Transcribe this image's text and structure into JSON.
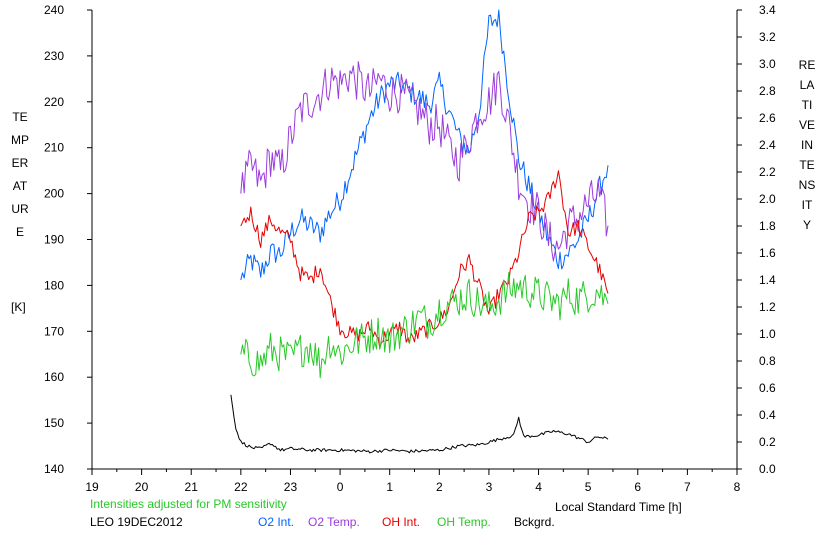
{
  "chart_data": {
    "type": "line",
    "title": "",
    "xlabel": "Local Standard Time [h]",
    "ylabel_left": "TEMPERATURE",
    "ylabel_left_unit": "[K]",
    "ylabel_right": "RELATIVE INTENSITY",
    "x_tick_labels": [
      "19",
      "20",
      "21",
      "22",
      "23",
      "0",
      "1",
      "2",
      "3",
      "4",
      "5",
      "6",
      "7",
      "8"
    ],
    "x_range_hours": [
      19,
      32
    ],
    "y_left_ticks": [
      140,
      150,
      160,
      170,
      180,
      190,
      200,
      210,
      220,
      230,
      240
    ],
    "y_left_range": [
      140,
      240
    ],
    "y_right_ticks": [
      "0.0",
      "0.2",
      "0.4",
      "0.6",
      "0.8",
      "1.0",
      "1.2",
      "1.4",
      "1.6",
      "1.8",
      "2.0",
      "2.2",
      "2.4",
      "2.6",
      "2.8",
      "3.0",
      "3.2",
      "3.4"
    ],
    "y_right_range": [
      0.0,
      3.4
    ],
    "grid": false,
    "note": "Intensities adjusted for PM sensitivity",
    "station": "LEO 19DEC2012",
    "series": [
      {
        "name": "O2 Int.",
        "color": "#0064ff",
        "axis": "right",
        "x": [
          22.0,
          22.2,
          22.4,
          22.6,
          22.8,
          23.0,
          23.2,
          23.4,
          23.6,
          23.8,
          24.0,
          24.2,
          24.4,
          24.6,
          24.8,
          25.0,
          25.2,
          25.4,
          25.6,
          25.8,
          26.0,
          26.2,
          26.4,
          26.6,
          26.8,
          27.0,
          27.2,
          27.4,
          27.6,
          27.8,
          28.0,
          28.2,
          28.4,
          28.6,
          28.8,
          29.0,
          29.2,
          29.4
        ],
        "values": [
          1.4,
          1.55,
          1.45,
          1.6,
          1.6,
          1.75,
          1.85,
          1.8,
          1.75,
          1.9,
          2.0,
          2.2,
          2.4,
          2.6,
          2.75,
          2.85,
          2.85,
          2.8,
          2.75,
          2.7,
          2.85,
          2.65,
          2.45,
          2.35,
          2.65,
          3.3,
          3.35,
          2.8,
          2.3,
          2.1,
          1.9,
          1.7,
          1.55,
          1.6,
          1.7,
          1.85,
          2.05,
          2.25
        ]
      },
      {
        "name": "O2 Temp.",
        "color": "#9b3cdc",
        "axis": "left",
        "x": [
          22.0,
          22.2,
          22.4,
          22.6,
          22.8,
          23.0,
          23.2,
          23.4,
          23.6,
          23.8,
          24.0,
          24.2,
          24.4,
          24.6,
          24.8,
          25.0,
          25.2,
          25.4,
          25.6,
          25.8,
          26.0,
          26.2,
          26.4,
          26.6,
          26.8,
          27.0,
          27.2,
          27.4,
          27.6,
          27.8,
          28.0,
          28.2,
          28.4,
          28.6,
          28.8,
          29.0,
          29.2,
          29.4
        ],
        "values": [
          200,
          206,
          202,
          208,
          205,
          212,
          218,
          220,
          222,
          225,
          224,
          226,
          224,
          222,
          225,
          222,
          222,
          220,
          218,
          215,
          215,
          210,
          207,
          212,
          218,
          220,
          225,
          215,
          203,
          198,
          196,
          190,
          188,
          193,
          195,
          198,
          200,
          193
        ]
      },
      {
        "name": "OH Int.",
        "color": "#e60000",
        "axis": "right",
        "x": [
          22.0,
          22.2,
          22.4,
          22.6,
          22.8,
          23.0,
          23.2,
          23.4,
          23.6,
          23.8,
          24.0,
          24.2,
          24.4,
          24.6,
          24.8,
          25.0,
          25.2,
          25.4,
          25.6,
          25.8,
          26.0,
          26.2,
          26.4,
          26.6,
          26.8,
          27.0,
          27.2,
          27.4,
          27.6,
          27.8,
          28.0,
          28.2,
          28.4,
          28.6,
          28.8,
          29.0,
          29.2,
          29.4
        ],
        "values": [
          1.8,
          1.9,
          1.7,
          1.85,
          1.75,
          1.7,
          1.45,
          1.4,
          1.5,
          1.25,
          1.05,
          1.0,
          1.0,
          1.05,
          0.95,
          1.0,
          1.05,
          0.95,
          1.0,
          1.05,
          1.1,
          1.2,
          1.45,
          1.55,
          1.35,
          1.15,
          1.3,
          1.4,
          1.6,
          1.85,
          1.9,
          2.0,
          2.2,
          1.75,
          1.8,
          1.65,
          1.5,
          1.3
        ]
      },
      {
        "name": "OH Temp.",
        "color": "#28c828",
        "axis": "left",
        "x": [
          22.0,
          22.2,
          22.4,
          22.6,
          22.8,
          23.0,
          23.2,
          23.4,
          23.6,
          23.8,
          24.0,
          24.2,
          24.4,
          24.6,
          24.8,
          25.0,
          25.2,
          25.4,
          25.6,
          25.8,
          26.0,
          26.2,
          26.4,
          26.6,
          26.8,
          27.0,
          27.2,
          27.4,
          27.6,
          27.8,
          28.0,
          28.2,
          28.4,
          28.6,
          28.8,
          29.0,
          29.2,
          29.4
        ],
        "values": [
          165,
          164,
          163,
          166,
          165,
          164,
          166,
          167,
          163,
          168,
          165,
          167,
          168,
          169,
          170,
          168,
          170,
          171,
          173,
          172,
          175,
          176,
          177,
          178,
          176,
          175,
          177,
          179,
          180,
          179,
          178,
          177,
          176,
          178,
          177,
          178,
          179,
          176
        ]
      },
      {
        "name": "Bckgrd.",
        "color": "#000000",
        "axis": "right",
        "x": [
          21.8,
          21.9,
          22.0,
          22.2,
          22.4,
          22.6,
          22.8,
          23.0,
          23.4,
          24.0,
          24.6,
          25.0,
          25.4,
          26.0,
          26.4,
          26.8,
          27.2,
          27.5,
          27.6,
          27.7,
          28.0,
          28.3,
          28.6,
          29.0,
          29.2,
          29.4
        ],
        "values": [
          0.55,
          0.3,
          0.2,
          0.16,
          0.15,
          0.19,
          0.14,
          0.15,
          0.14,
          0.14,
          0.13,
          0.14,
          0.13,
          0.14,
          0.17,
          0.18,
          0.22,
          0.25,
          0.38,
          0.24,
          0.25,
          0.28,
          0.26,
          0.2,
          0.24,
          0.22
        ]
      }
    ]
  }
}
